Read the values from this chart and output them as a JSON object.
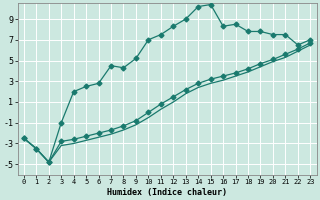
{
  "xlabel": "Humidex (Indice chaleur)",
  "background_color": "#cce8e0",
  "grid_color": "#ffffff",
  "line_color": "#1a7a6e",
  "xlim": [
    -0.5,
    23.5
  ],
  "ylim": [
    -6,
    10.5
  ],
  "xticks": [
    0,
    1,
    2,
    3,
    4,
    5,
    6,
    7,
    8,
    9,
    10,
    11,
    12,
    13,
    14,
    15,
    16,
    17,
    18,
    19,
    20,
    21,
    22,
    23
  ],
  "yticks": [
    -5,
    -3,
    -1,
    1,
    3,
    5,
    7,
    9
  ],
  "line1_x": [
    0,
    1,
    2,
    3,
    4,
    5,
    6,
    7,
    8,
    9,
    10,
    11,
    12,
    13,
    14,
    15,
    16,
    17,
    18,
    19,
    20,
    21,
    22,
    23
  ],
  "line1_y": [
    -2.5,
    -3.5,
    -4.8,
    -1.0,
    2.0,
    2.5,
    2.8,
    4.5,
    4.3,
    5.2,
    7.0,
    7.5,
    8.3,
    9.0,
    10.2,
    10.4,
    8.3,
    8.5,
    7.8,
    7.8,
    7.5,
    7.5,
    6.5,
    7.0
  ],
  "line2_x": [
    0,
    1,
    2,
    3,
    4,
    5,
    6,
    7,
    8,
    9,
    10,
    11,
    12,
    13,
    14,
    15,
    16,
    17,
    18,
    19,
    20,
    21,
    22,
    23
  ],
  "line2_y": [
    -2.5,
    -3.5,
    -4.8,
    -2.8,
    -2.6,
    -2.3,
    -2.0,
    -1.7,
    -1.3,
    -0.8,
    0.0,
    0.8,
    1.5,
    2.2,
    2.8,
    3.2,
    3.5,
    3.8,
    4.2,
    4.7,
    5.1,
    5.6,
    6.1,
    6.7
  ],
  "line3_x": [
    0,
    1,
    2,
    3,
    4,
    5,
    6,
    7,
    8,
    9,
    10,
    11,
    12,
    13,
    14,
    15,
    16,
    17,
    18,
    19,
    20,
    21,
    22,
    23
  ],
  "line3_y": [
    -2.5,
    -3.5,
    -4.8,
    -3.2,
    -3.0,
    -2.7,
    -2.4,
    -2.1,
    -1.7,
    -1.2,
    -0.5,
    0.3,
    1.0,
    1.8,
    2.4,
    2.8,
    3.1,
    3.5,
    3.9,
    4.4,
    4.9,
    5.3,
    5.9,
    6.5
  ],
  "marker": "D",
  "markersize": 2.5
}
